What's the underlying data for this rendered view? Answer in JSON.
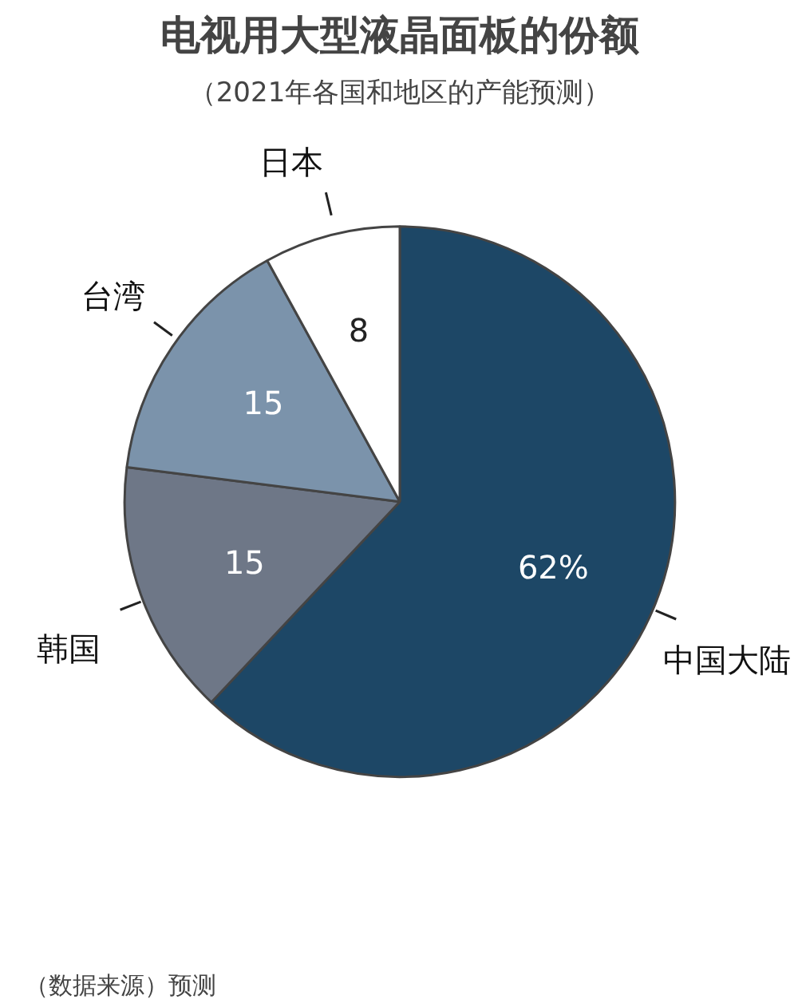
{
  "chart_data": {
    "type": "pie",
    "title": "电视用大型液晶面板的份额",
    "subtitle": "（2021年各国和地区的产能预测）",
    "categories": [
      "中国大陆",
      "韩国",
      "台湾",
      "日本"
    ],
    "values": [
      62,
      15,
      15,
      8
    ],
    "value_labels": [
      "62%",
      "15",
      "15",
      "8"
    ],
    "colors": [
      "#1d4766",
      "#6e7787",
      "#7b93ab",
      "#ffffff"
    ],
    "legend": false,
    "annotations": [
      "（数据来源）预测"
    ]
  }
}
